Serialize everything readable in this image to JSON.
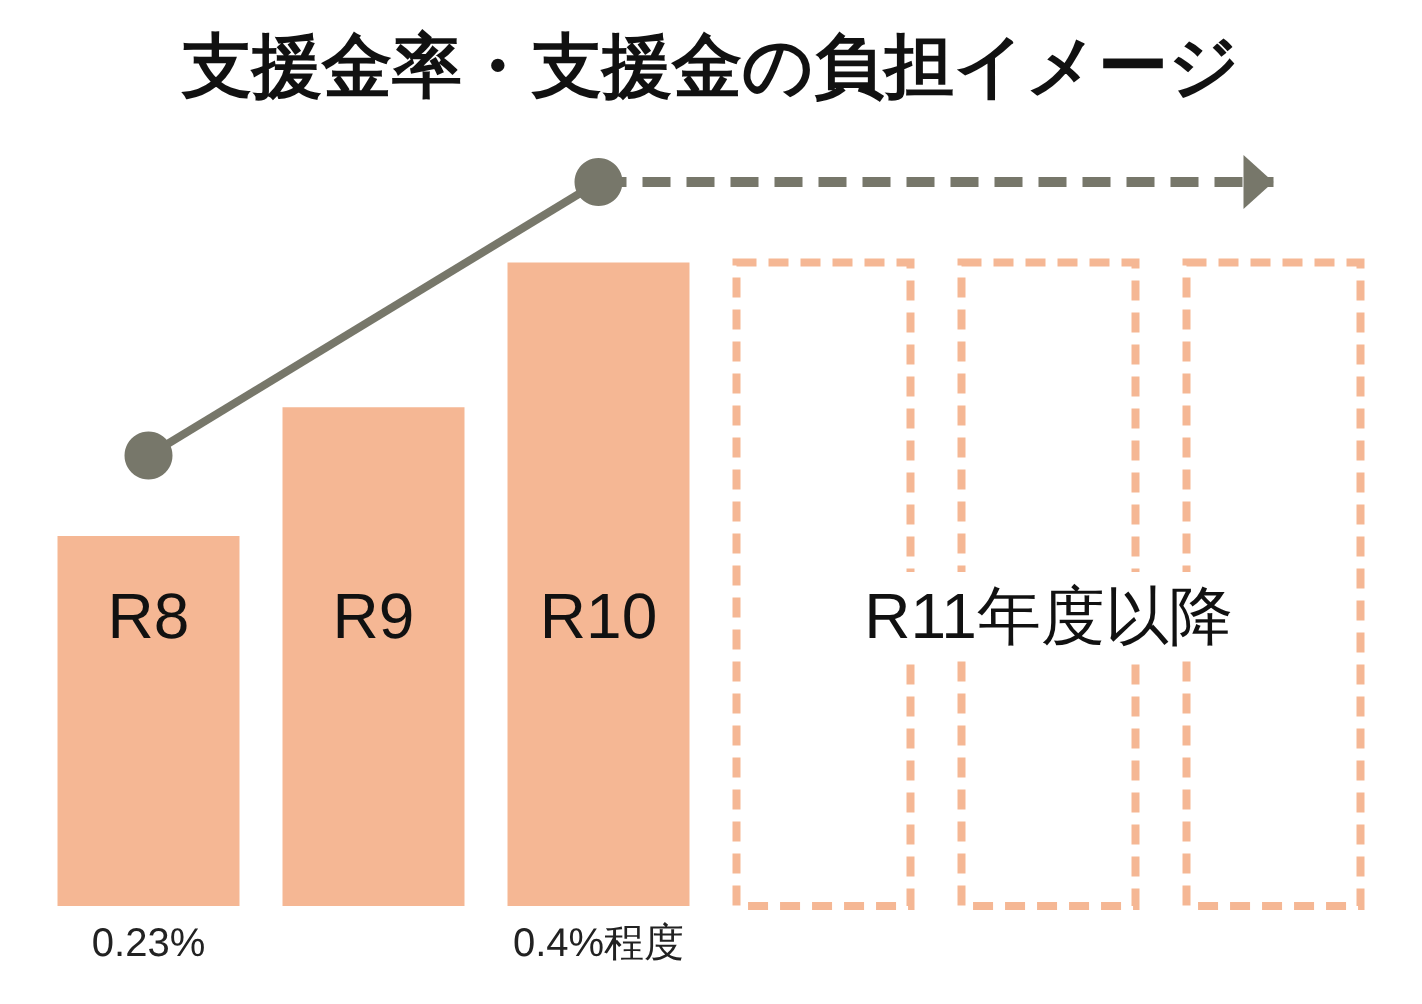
{
  "chart_data": {
    "type": "bar",
    "title": "支援金率・支援金の負担イメージ",
    "categories": [
      "R8",
      "R9",
      "R10",
      null,
      null,
      null
    ],
    "tick_labels": "x",
    "series": [
      {
        "color": "#f5b794",
        "values": [
          0.23,
          0.31,
          0.4,
          null,
          null,
          null
        ],
        "value_labels": [
          "0.23%",
          null,
          "0.4%程度",
          null,
          null,
          null
        ]
      },
      {
        "color": "#f5b794",
        "values": [
          null,
          null,
          null,
          0.4,
          0.4,
          0.4
        ],
        "line_style": "dashed"
      },
      {
        "type": "line",
        "color": "#77776a",
        "values": [
          0.28,
          null,
          0.45,
          null,
          null,
          null
        ],
        "marker": "circle",
        "line_style": "solid"
      },
      {
        "type": "line",
        "color": "#77776a",
        "values": [
          null,
          null,
          0.45,
          0.45,
          0.45,
          0.45
        ],
        "marker": "none",
        "line_style": "dashed"
      }
    ],
    "annotations": [
      "R11年度以降"
    ]
  }
}
